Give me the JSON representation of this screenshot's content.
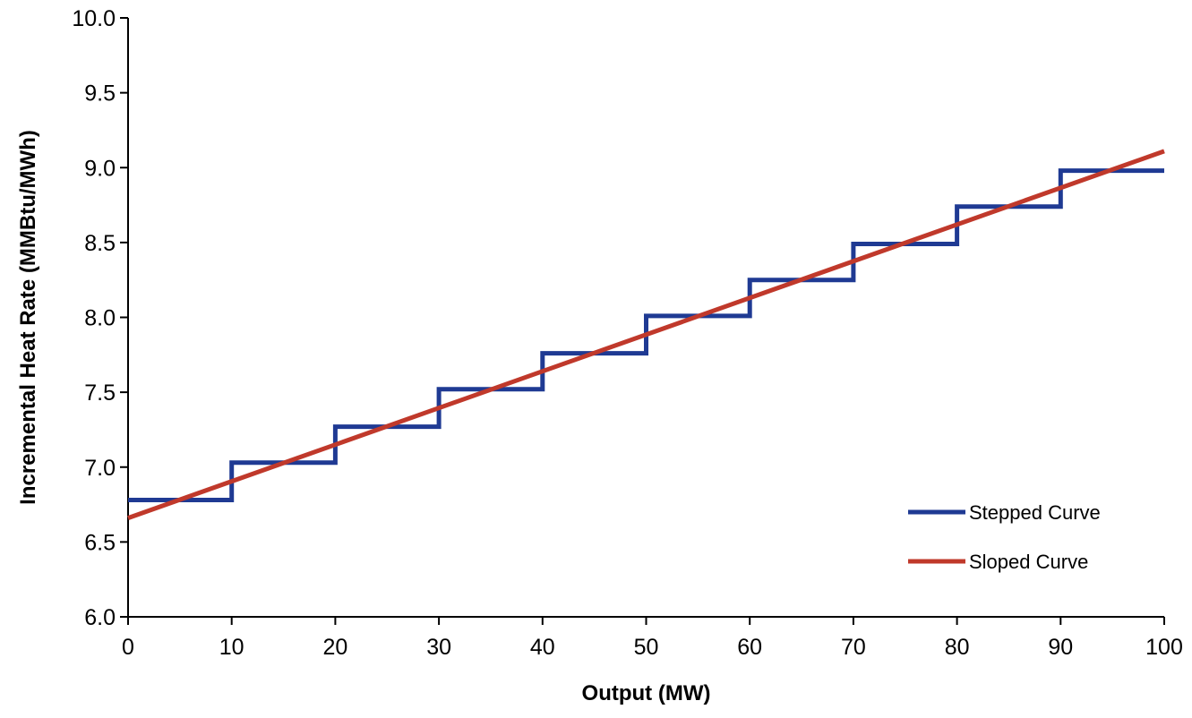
{
  "chart_data": {
    "type": "line",
    "title": "",
    "xlabel": "Output (MW)",
    "ylabel": "Incremental Heat Rate (MMBtu/MWh)",
    "xlim": [
      0,
      100
    ],
    "ylim": [
      6.0,
      10.0
    ],
    "x_ticks": [
      0,
      10,
      20,
      30,
      40,
      50,
      60,
      70,
      80,
      90,
      100
    ],
    "y_ticks": [
      6.0,
      6.5,
      7.0,
      7.5,
      8.0,
      8.5,
      9.0,
      9.5,
      10.0
    ],
    "x_tick_labels": [
      "0",
      "10",
      "20",
      "30",
      "40",
      "50",
      "60",
      "70",
      "80",
      "90",
      "100"
    ],
    "y_tick_labels": [
      "6.0",
      "6.5",
      "7.0",
      "7.5",
      "8.0",
      "8.5",
      "9.0",
      "9.5",
      "10.0"
    ],
    "grid": false,
    "legend_position": "bottom-right",
    "series": [
      {
        "name": "Stepped Curve",
        "color": "#1F3A93",
        "style": "step",
        "x": [
          0,
          10,
          20,
          30,
          40,
          50,
          60,
          70,
          80,
          90,
          100
        ],
        "y": [
          6.78,
          7.03,
          7.27,
          7.52,
          7.76,
          8.01,
          8.25,
          8.49,
          8.74,
          8.98,
          8.98
        ]
      },
      {
        "name": "Sloped Curve",
        "color": "#C0392B",
        "style": "line",
        "x": [
          0,
          100
        ],
        "y": [
          6.66,
          9.11
        ]
      }
    ]
  }
}
